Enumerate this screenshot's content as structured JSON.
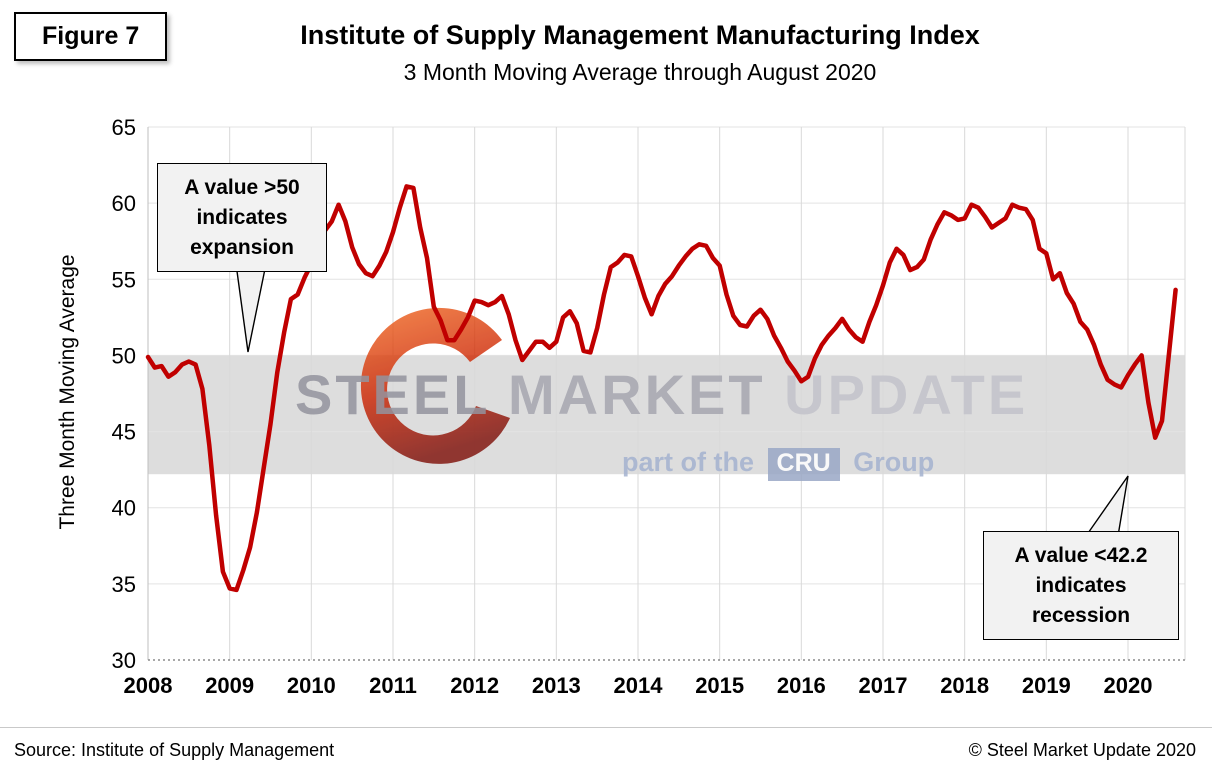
{
  "figure_label": "Figure 7",
  "title": "Institute of Supply Management Manufacturing Index",
  "subtitle": "3 Month Moving Average through August 2020",
  "ylabel": "Three Month Moving Average",
  "annotations": {
    "expansion": "A value >50\nindicates\nexpansion",
    "recession": "A value <42.2\nindicates\nrecession"
  },
  "watermark": {
    "steel": "STEEL",
    "market": "MARKET",
    "update": "UPDATE",
    "part_of_the": "part of the",
    "cru": "CRU",
    "group": "Group"
  },
  "footer": {
    "source": "Source: Institute of Supply Management",
    "copyright": "© Steel Market Update 2020"
  },
  "chart_data": {
    "type": "line",
    "title": "Institute of Supply Management Manufacturing Index",
    "subtitle": "3 Month Moving Average through August 2020",
    "xlabel": "",
    "ylabel": "Three Month Moving Average",
    "ylim": [
      30,
      65
    ],
    "y_ticks": [
      30,
      35,
      40,
      45,
      50,
      55,
      60,
      65
    ],
    "x_labels": [
      "2008",
      "2009",
      "2010",
      "2011",
      "2012",
      "2013",
      "2014",
      "2015",
      "2016",
      "2017",
      "2018",
      "2019",
      "2020"
    ],
    "frequency": "monthly",
    "start_month": "2008-01",
    "end_month": "2020-08",
    "line_color": "#c00000",
    "band": {
      "from": 42.2,
      "to": 50.0,
      "color": "#d9d9d9",
      "meaning_above": "expansion",
      "meaning_below": "recession"
    },
    "values": [
      49.9,
      49.2,
      49.3,
      48.6,
      48.9,
      49.4,
      49.6,
      49.4,
      47.8,
      44.1,
      39.5,
      35.8,
      34.7,
      34.6,
      35.9,
      37.4,
      39.7,
      42.6,
      45.5,
      48.9,
      51.5,
      53.7,
      54.0,
      55.1,
      56.0,
      56.9,
      58.2,
      58.8,
      59.9,
      58.8,
      57.1,
      56.0,
      55.4,
      55.2,
      55.9,
      56.8,
      58.1,
      59.7,
      61.1,
      61.0,
      58.4,
      56.4,
      53.2,
      52.3,
      51.0,
      51.0,
      51.7,
      52.5,
      53.6,
      53.5,
      53.3,
      53.5,
      53.9,
      52.7,
      51.0,
      49.7,
      50.3,
      50.9,
      50.9,
      50.5,
      50.9,
      52.5,
      52.9,
      52.1,
      50.3,
      50.2,
      51.8,
      54.0,
      55.8,
      56.1,
      56.6,
      56.5,
      55.2,
      53.8,
      52.7,
      53.9,
      54.7,
      55.2,
      55.9,
      56.5,
      57.0,
      57.3,
      57.2,
      56.4,
      55.9,
      54.0,
      52.6,
      52.0,
      51.9,
      52.6,
      53.0,
      52.4,
      51.3,
      50.5,
      49.6,
      49.0,
      48.3,
      48.6,
      49.8,
      50.7,
      51.3,
      51.8,
      52.4,
      51.7,
      51.2,
      50.9,
      52.2,
      53.3,
      54.6,
      56.1,
      57.0,
      56.6,
      55.6,
      55.8,
      56.3,
      57.6,
      58.6,
      59.4,
      59.2,
      58.9,
      59.0,
      59.9,
      59.7,
      59.1,
      58.4,
      58.7,
      59.0,
      59.9,
      59.7,
      59.6,
      58.9,
      57.0,
      56.7,
      55.0,
      55.4,
      54.1,
      53.4,
      52.2,
      51.7,
      50.7,
      49.4,
      48.4,
      48.1,
      47.9,
      48.7,
      49.4,
      50.0,
      46.9,
      44.6,
      45.7,
      50.0,
      54.3
    ]
  }
}
